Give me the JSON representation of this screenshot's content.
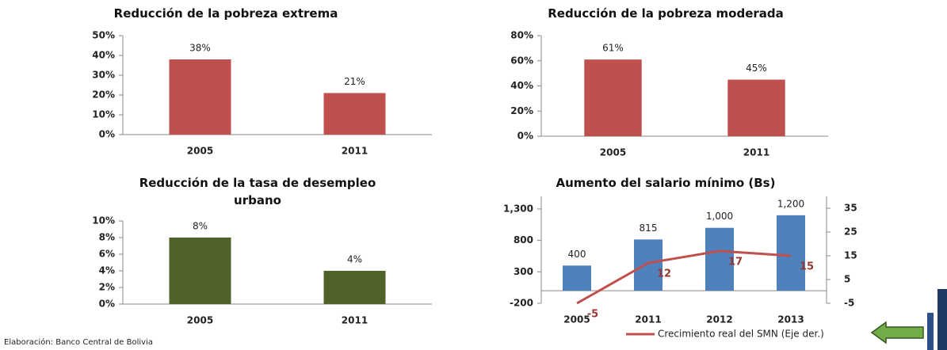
{
  "chart_data": [
    {
      "type": "bar",
      "title": "Reducción de la pobreza extrema",
      "categories": [
        "2005",
        "2011"
      ],
      "values": [
        38,
        21
      ],
      "value_labels": [
        "38%",
        "21%"
      ],
      "color": "#c0504d",
      "ylim": [
        0,
        50
      ],
      "yticks": [
        {
          "value": 0,
          "label": "0%"
        },
        {
          "value": 10,
          "label": "10%"
        },
        {
          "value": 20,
          "label": "20%"
        },
        {
          "value": 30,
          "label": "30%"
        },
        {
          "value": 40,
          "label": "40%"
        },
        {
          "value": 50,
          "label": "50%"
        }
      ]
    },
    {
      "type": "bar",
      "title": "Reducción de la pobreza moderada",
      "categories": [
        "2005",
        "2011"
      ],
      "values": [
        61,
        45
      ],
      "value_labels": [
        "61%",
        "45%"
      ],
      "color": "#c0504d",
      "ylim": [
        0,
        80
      ],
      "yticks": [
        {
          "value": 0,
          "label": "0%"
        },
        {
          "value": 20,
          "label": "20%"
        },
        {
          "value": 40,
          "label": "40%"
        },
        {
          "value": 60,
          "label": "60%"
        },
        {
          "value": 80,
          "label": "80%"
        }
      ]
    },
    {
      "type": "bar",
      "title": "Reducción de la tasa de desempleo urbano",
      "categories": [
        "2005",
        "2011"
      ],
      "values": [
        8,
        4
      ],
      "value_labels": [
        "8%",
        "4%"
      ],
      "color": "#4f6228",
      "ylim": [
        0,
        10
      ],
      "yticks": [
        {
          "value": 0,
          "label": "0%"
        },
        {
          "value": 2,
          "label": "2%"
        },
        {
          "value": 4,
          "label": "4%"
        },
        {
          "value": 6,
          "label": "6%"
        },
        {
          "value": 8,
          "label": "8%"
        },
        {
          "value": 10,
          "label": "10%"
        }
      ]
    },
    {
      "type": "combo",
      "title": "Aumento del salario mínimo (Bs)",
      "categories": [
        "2005",
        "2011",
        "2012",
        "2013"
      ],
      "series": [
        {
          "kind": "bar",
          "color": "#4f81bd",
          "values": [
            400,
            815,
            1000,
            1200
          ],
          "value_labels": [
            "400",
            "815",
            "1,000",
            "1,200"
          ]
        },
        {
          "kind": "line",
          "name": "Crecimiento real del SMN (Eje der.)",
          "color": "#c0504d",
          "axis": "y2",
          "values": [
            -5,
            12,
            17,
            15
          ]
        }
      ],
      "ylim": [
        -200,
        1500
      ],
      "yticks": [
        -200,
        300,
        800,
        {
          "value": 1300,
          "label": "1,300"
        }
      ],
      "y2lim": [
        -5,
        40
      ],
      "y2ticks": [
        -5,
        5,
        15,
        25,
        35
      ],
      "legend": "bottom"
    }
  ],
  "footer": "Elaboración: Banco Central de Bolivia"
}
